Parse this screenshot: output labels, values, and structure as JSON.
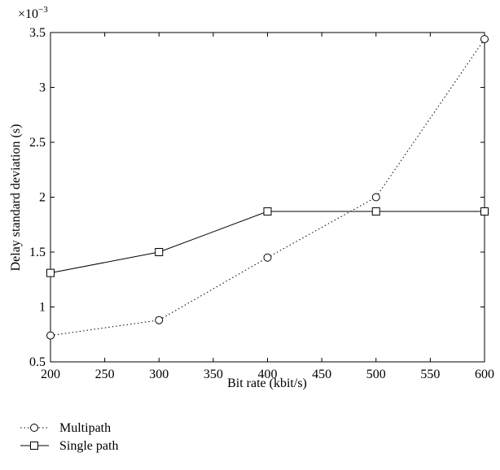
{
  "chart_data": {
    "type": "line",
    "xlabel": "Bit rate (kbit/s)",
    "ylabel": "Delay standard deviation (s)",
    "y_multiplier_label": "×10",
    "y_multiplier_exponent": "−3",
    "xlim": [
      200,
      600
    ],
    "ylim": [
      0.5,
      3.5
    ],
    "x_ticks": [
      200,
      250,
      300,
      350,
      400,
      450,
      500,
      550,
      600
    ],
    "y_ticks": [
      0.5,
      1,
      1.5,
      2,
      2.5,
      3,
      3.5
    ],
    "x_tick_labels": [
      "200",
      "250",
      "300",
      "350",
      "400",
      "450",
      "500",
      "550",
      "600"
    ],
    "y_tick_labels": [
      "0.5",
      "1",
      "1.5",
      "2",
      "2.5",
      "3",
      "3.5"
    ],
    "grid": false,
    "legend_position": "bottom-left",
    "series": [
      {
        "name": "Multipath",
        "line_style": "dotted",
        "marker": "circle",
        "x": [
          200,
          300,
          400,
          500,
          600
        ],
        "y": [
          0.74,
          0.88,
          1.45,
          2.0,
          3.44
        ]
      },
      {
        "name": "Single path",
        "line_style": "solid",
        "marker": "square",
        "x": [
          200,
          300,
          400,
          500,
          600
        ],
        "y": [
          1.31,
          1.5,
          1.87,
          1.87,
          1.87
        ]
      }
    ]
  }
}
